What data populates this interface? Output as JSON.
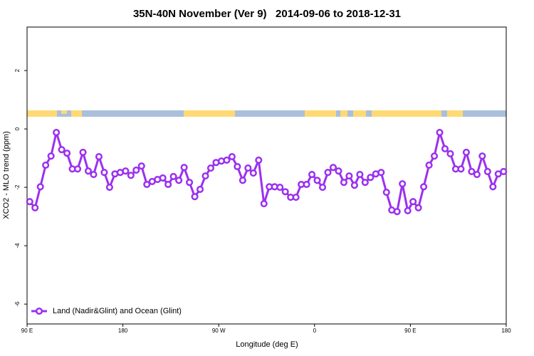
{
  "chart_data": {
    "type": "line",
    "title": "35N-40N November (Ver 9)   2014-09-06 to 2018-12-31",
    "x_label": "Longitude (deg E)",
    "y_label": "XCO2 - MLO trend (ppm)",
    "xlim": [
      90,
      540
    ],
    "xticks": [
      {
        "value": 90,
        "label": "90 E"
      },
      {
        "value": 180,
        "label": "180"
      },
      {
        "value": 270,
        "label": "90 W"
      },
      {
        "value": 360,
        "label": "0"
      },
      {
        "value": 450,
        "label": "90 E"
      },
      {
        "value": 540,
        "label": "180"
      }
    ],
    "ylim": [
      -6.68,
      3.49
    ],
    "yticks": [
      -6,
      -4,
      -2,
      0,
      2
    ],
    "legend": "bottom-left",
    "x": [
      92.5,
      97.5,
      102.5,
      107.5,
      112.5,
      117.5,
      122.5,
      127.5,
      132.5,
      137.5,
      142.5,
      147.5,
      152.5,
      157.5,
      162.5,
      167.5,
      172.5,
      177.5,
      182.5,
      187.5,
      192.5,
      197.5,
      202.5,
      207.5,
      212.5,
      217.5,
      222.5,
      227.5,
      232.5,
      237.5,
      242.5,
      247.5,
      252.5,
      257.5,
      262.5,
      267.5,
      272.5,
      277.5,
      282.5,
      287.5,
      292.5,
      297.5,
      302.5,
      307.5,
      312.5,
      317.5,
      322.5,
      327.5,
      332.5,
      337.5,
      342.5,
      347.5,
      352.5,
      357.5,
      362.5,
      367.5,
      372.5,
      377.5,
      382.5,
      387.5,
      392.5,
      397.5,
      402.5,
      407.5,
      412.5,
      417.5,
      422.5,
      427.5,
      432.5,
      437.5,
      442.5,
      447.5,
      452.5,
      457.5,
      462.5,
      467.5,
      472.5,
      477.5,
      482.5,
      487.5,
      492.5,
      497.5,
      502.5,
      507.5,
      512.5,
      517.5,
      522.5,
      527.5,
      532.5,
      537.5
    ],
    "series": [
      {
        "name": "Land (Nadir&Glint) and Ocean (Glint)",
        "color": "#9b30f0",
        "values": [
          -2.49,
          -2.7,
          -1.98,
          -1.24,
          -0.93,
          -0.12,
          -0.71,
          -0.83,
          -1.37,
          -1.37,
          -0.8,
          -1.44,
          -1.56,
          -0.95,
          -1.49,
          -2.0,
          -1.54,
          -1.49,
          -1.44,
          -1.59,
          -1.41,
          -1.27,
          -1.9,
          -1.8,
          -1.73,
          -1.68,
          -1.9,
          -1.63,
          -1.76,
          -1.32,
          -1.83,
          -2.32,
          -2.07,
          -1.61,
          -1.34,
          -1.15,
          -1.1,
          -1.07,
          -0.95,
          -1.29,
          -1.76,
          -1.34,
          -1.51,
          -1.07,
          -2.56,
          -1.98,
          -1.98,
          -2.0,
          -2.15,
          -2.34,
          -2.34,
          -1.9,
          -1.9,
          -1.56,
          -1.76,
          -2.0,
          -1.49,
          -1.32,
          -1.44,
          -1.83,
          -1.61,
          -1.93,
          -1.56,
          -1.83,
          -1.66,
          -1.54,
          -1.49,
          -2.17,
          -2.78,
          -2.83,
          -1.88,
          -2.8,
          -2.49,
          -2.7,
          -1.98,
          -1.24,
          -0.93,
          -0.12,
          -0.68,
          -0.85,
          -1.37,
          -1.37,
          -0.8,
          -1.46,
          -1.56,
          -0.93,
          -1.46,
          -1.98,
          -1.54,
          -1.46
        ]
      }
    ]
  }
}
